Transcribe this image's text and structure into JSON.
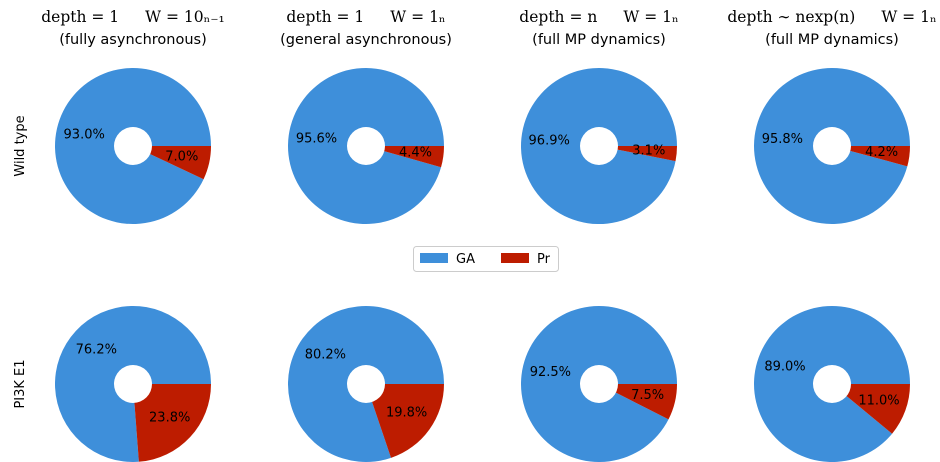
{
  "colors": {
    "GA": "#3e8fda",
    "Pr": "#bd1c00"
  },
  "legend": [
    {
      "name": "GA",
      "color": "#3e8fda"
    },
    {
      "name": "Pr",
      "color": "#bd1c00"
    }
  ],
  "columns": [
    {
      "title_depth": "depth = 1",
      "title_w": "W = 10ₙ₋₁",
      "subtitle": "(fully asynchronous)"
    },
    {
      "title_depth": "depth = 1",
      "title_w": "W = 1ₙ",
      "subtitle": "(general asynchronous)"
    },
    {
      "title_depth": "depth = n",
      "title_w": "W = 1ₙ",
      "subtitle": "(full MP dynamics)"
    },
    {
      "title_depth": "depth ∼ nexp(n)",
      "title_w": "W = 1ₙ",
      "subtitle": "(full MP dynamics)"
    }
  ],
  "rows": [
    "Wild type",
    "PI3K E1"
  ],
  "chart_data": {
    "type": "pie",
    "legend_position": "center",
    "categories": [
      "GA",
      "Pr"
    ],
    "panels": [
      {
        "row": "Wild type",
        "column": 0,
        "values": [
          93.0,
          7.0
        ],
        "labels": [
          "93.0%",
          "7.0%"
        ]
      },
      {
        "row": "Wild type",
        "column": 1,
        "values": [
          95.6,
          4.4
        ],
        "labels": [
          "95.6%",
          "4.4%"
        ]
      },
      {
        "row": "Wild type",
        "column": 2,
        "values": [
          96.9,
          3.1
        ],
        "labels": [
          "96.9%",
          "3.1%"
        ]
      },
      {
        "row": "Wild type",
        "column": 3,
        "values": [
          95.8,
          4.2
        ],
        "labels": [
          "95.8%",
          "4.2%"
        ]
      },
      {
        "row": "PI3K E1",
        "column": 0,
        "values": [
          76.2,
          23.8
        ],
        "labels": [
          "76.2%",
          "23.8%"
        ]
      },
      {
        "row": "PI3K E1",
        "column": 1,
        "values": [
          80.2,
          19.8
        ],
        "labels": [
          "80.2%",
          "19.8%"
        ]
      },
      {
        "row": "PI3K E1",
        "column": 2,
        "values": [
          92.5,
          7.5
        ],
        "labels": [
          "92.5%",
          "7.5%"
        ]
      },
      {
        "row": "PI3K E1",
        "column": 3,
        "values": [
          89.0,
          11.0
        ],
        "labels": [
          "89.0%",
          "11.0%"
        ]
      }
    ]
  }
}
